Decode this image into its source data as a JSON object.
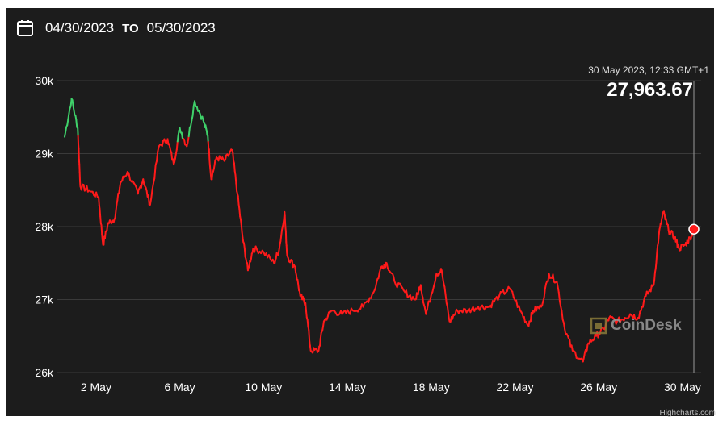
{
  "date_range": {
    "start": "04/30/2023",
    "separator": "TO",
    "end": "05/30/2023"
  },
  "tooltip": {
    "time": "30 May 2023, 12:33 GMT+1",
    "value": "27,963.67"
  },
  "watermark": "CoinDesk",
  "credit": "Highcharts.com",
  "colors": {
    "background": "#1c1c1c",
    "up": "#3fd16a",
    "down": "#ff1a1a",
    "grid": "#3a3a3a",
    "text": "#ffffff"
  },
  "chart_data": {
    "type": "line",
    "title": "",
    "xlabel": "",
    "ylabel": "",
    "x_ticks": [
      "2 May",
      "6 May",
      "10 May",
      "14 May",
      "18 May",
      "22 May",
      "26 May",
      "30 May"
    ],
    "y_ticks": [
      "26k",
      "27k",
      "28k",
      "29k",
      "30k"
    ],
    "ylim": [
      26000,
      30000
    ],
    "xlim": [
      "2023-04-30T12:00",
      "2023-05-30T13:00"
    ],
    "grid": true,
    "series": [
      {
        "color_rule": "green above 29,200, red below",
        "points": [
          [
            "2023-04-30T12:00",
            29230
          ],
          [
            "2023-04-30T20:00",
            29750
          ],
          [
            "2023-05-01T03:00",
            29350
          ],
          [
            "2023-05-01T06:00",
            28550
          ],
          [
            "2023-05-01T16:00",
            28500
          ],
          [
            "2023-05-02T03:00",
            28400
          ],
          [
            "2023-05-02T08:00",
            27750
          ],
          [
            "2023-05-02T14:00",
            28050
          ],
          [
            "2023-05-02T21:00",
            28100
          ],
          [
            "2023-05-03T04:00",
            28600
          ],
          [
            "2023-05-03T12:00",
            28750
          ],
          [
            "2023-05-04T00:00",
            28450
          ],
          [
            "2023-05-04T06:00",
            28650
          ],
          [
            "2023-05-04T14:00",
            28300
          ],
          [
            "2023-05-05T00:00",
            29100
          ],
          [
            "2023-05-05T10:00",
            29200
          ],
          [
            "2023-05-05T17:00",
            28850
          ],
          [
            "2023-05-06T00:00",
            29350
          ],
          [
            "2023-05-06T08:00",
            29100
          ],
          [
            "2023-05-06T17:00",
            29720
          ],
          [
            "2023-05-07T03:00",
            29450
          ],
          [
            "2023-05-07T08:00",
            29250
          ],
          [
            "2023-05-07T12:00",
            28650
          ],
          [
            "2023-05-07T18:00",
            28950
          ],
          [
            "2023-05-08T03:00",
            28900
          ],
          [
            "2023-05-08T12:00",
            29050
          ],
          [
            "2023-05-08T18:00",
            28450
          ],
          [
            "2023-05-09T00:00",
            27850
          ],
          [
            "2023-05-09T06:00",
            27400
          ],
          [
            "2023-05-09T12:00",
            27700
          ],
          [
            "2023-05-10T00:00",
            27650
          ],
          [
            "2023-05-10T12:00",
            27500
          ],
          [
            "2023-05-10T18:00",
            27700
          ],
          [
            "2023-05-11T00:00",
            28200
          ],
          [
            "2023-05-11T03:00",
            27600
          ],
          [
            "2023-05-11T12:00",
            27450
          ],
          [
            "2023-05-11T18:00",
            27050
          ],
          [
            "2023-05-12T00:00",
            26950
          ],
          [
            "2023-05-12T06:00",
            26300
          ],
          [
            "2023-05-12T15:00",
            26300
          ],
          [
            "2023-05-12T21:00",
            26700
          ],
          [
            "2023-05-13T06:00",
            26850
          ],
          [
            "2023-05-13T18:00",
            26800
          ],
          [
            "2023-05-14T06:00",
            26850
          ],
          [
            "2023-05-14T18:00",
            26900
          ],
          [
            "2023-05-15T06:00",
            27100
          ],
          [
            "2023-05-15T15:00",
            27450
          ],
          [
            "2023-05-15T21:00",
            27500
          ],
          [
            "2023-05-16T06:00",
            27250
          ],
          [
            "2023-05-16T18:00",
            27100
          ],
          [
            "2023-05-17T06:00",
            27000
          ],
          [
            "2023-05-17T12:00",
            27200
          ],
          [
            "2023-05-17T18:00",
            26800
          ],
          [
            "2023-05-18T06:00",
            27350
          ],
          [
            "2023-05-18T12:00",
            27400
          ],
          [
            "2023-05-18T21:00",
            26700
          ],
          [
            "2023-05-19T06:00",
            26850
          ],
          [
            "2023-05-19T18:00",
            26850
          ],
          [
            "2023-05-20T06:00",
            26900
          ],
          [
            "2023-05-20T18:00",
            26900
          ],
          [
            "2023-05-21T06:00",
            27050
          ],
          [
            "2023-05-21T18:00",
            27150
          ],
          [
            "2023-05-22T06:00",
            26850
          ],
          [
            "2023-05-22T15:00",
            26650
          ],
          [
            "2023-05-22T21:00",
            26850
          ],
          [
            "2023-05-23T06:00",
            26900
          ],
          [
            "2023-05-23T15:00",
            27350
          ],
          [
            "2023-05-24T00:00",
            27250
          ],
          [
            "2023-05-24T09:00",
            26600
          ],
          [
            "2023-05-24T18:00",
            26300
          ],
          [
            "2023-05-25T06:00",
            26150
          ],
          [
            "2023-05-25T12:00",
            26400
          ],
          [
            "2023-05-25T21:00",
            26500
          ],
          [
            "2023-05-26T06:00",
            26600
          ],
          [
            "2023-05-26T12:00",
            26750
          ],
          [
            "2023-05-26T21:00",
            26700
          ],
          [
            "2023-05-27T06:00",
            26750
          ],
          [
            "2023-05-27T12:00",
            26800
          ],
          [
            "2023-05-27T21:00",
            26750
          ],
          [
            "2023-05-28T06:00",
            27050
          ],
          [
            "2023-05-28T15:00",
            27200
          ],
          [
            "2023-05-28T21:00",
            27900
          ],
          [
            "2023-05-29T02:00",
            28200
          ],
          [
            "2023-05-29T08:00",
            27950
          ],
          [
            "2023-05-29T15:00",
            27850
          ],
          [
            "2023-05-29T20:00",
            27700
          ],
          [
            "2023-05-30T03:00",
            27750
          ],
          [
            "2023-05-30T09:00",
            27850
          ],
          [
            "2023-05-30T13:00",
            27964
          ]
        ]
      }
    ],
    "highlight_point": [
      "2023-05-30T13:00",
      27963.67
    ],
    "color_threshold": 29200
  }
}
